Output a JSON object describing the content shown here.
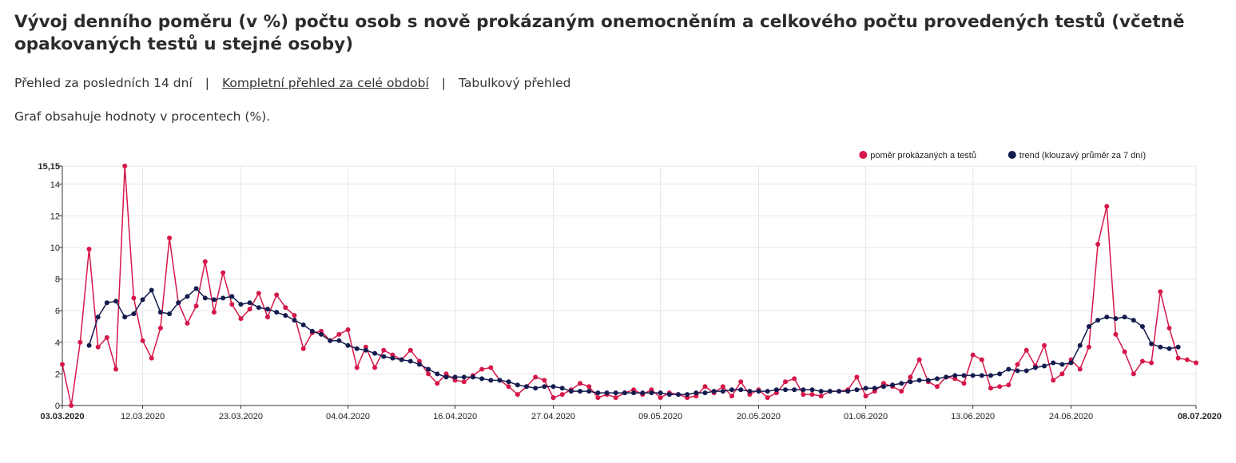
{
  "page": {
    "title": "Vývoj denního poměru (v %) počtu osob s nově prokázaným onemocněním a celkového počtu provedených testů (včetně opakovaných testů u stejné osoby)",
    "nav": [
      {
        "label": "Přehled za posledních 14 dní",
        "link": false
      },
      {
        "label": "Kompletní přehled za celé období",
        "link": true
      },
      {
        "label": "Tabulkový přehled",
        "link": false
      }
    ],
    "note": "Graf obsahuje hodnoty v procentech (%)."
  },
  "chart_data": {
    "type": "line",
    "x_start": "03.03.2020",
    "x_end": "08.07.2020",
    "ylim": [
      0,
      15.15
    ],
    "yticks": [
      "0",
      "2",
      "4",
      "6",
      "8",
      "10",
      "12",
      "14",
      "15,15"
    ],
    "xticks": [
      "03.03.2020",
      "12.03.2020",
      "23.03.2020",
      "04.04.2020",
      "16.04.2020",
      "27.04.2020",
      "09.05.2020",
      "20.05.2020",
      "01.06.2020",
      "13.06.2020",
      "24.06.2020",
      "08.07.2020"
    ],
    "grid": true,
    "legend_position": "top-right",
    "series": [
      {
        "name": "poměr prokázaných a testů",
        "color": "#d6174a",
        "values": [
          2.6,
          0.0,
          4.0,
          9.9,
          3.7,
          4.3,
          2.3,
          15.15,
          6.8,
          4.1,
          3.0,
          4.9,
          10.6,
          6.5,
          5.2,
          6.3,
          9.1,
          5.9,
          8.4,
          6.4,
          5.5,
          6.1,
          7.1,
          5.6,
          7.0,
          6.2,
          5.7,
          3.6,
          4.6,
          4.7,
          4.1,
          4.5,
          4.8,
          2.4,
          3.7,
          2.4,
          3.5,
          3.2,
          2.9,
          3.5,
          2.8,
          2.0,
          1.4,
          2.0,
          1.6,
          1.5,
          1.9,
          2.3,
          2.4,
          1.6,
          1.2,
          0.7,
          1.2,
          1.8,
          1.6,
          0.5,
          0.7,
          1.0,
          1.4,
          1.2,
          0.5,
          0.7,
          0.5,
          0.8,
          1.0,
          0.7,
          1.0,
          0.5,
          0.8,
          0.7,
          0.5,
          0.6,
          1.2,
          0.8,
          1.2,
          0.6,
          1.5,
          0.7,
          1.0,
          0.5,
          0.8,
          1.5,
          1.7,
          0.7,
          0.7,
          0.6,
          0.9,
          0.9,
          1.0,
          1.8,
          0.6,
          0.9,
          1.4,
          1.2,
          0.9,
          1.8,
          2.9,
          1.5,
          1.2,
          1.8,
          1.7,
          1.4,
          3.2,
          2.9,
          1.1,
          1.2,
          1.3,
          2.6,
          3.5,
          2.5,
          3.8,
          1.6,
          2.0,
          2.9,
          2.3,
          3.7,
          10.2,
          12.6,
          4.5,
          3.4,
          2.0,
          2.8,
          2.7,
          7.2,
          4.9,
          3.0,
          2.9,
          2.7
        ]
      },
      {
        "name": "trend (klouzavý průměr za 7 dní)",
        "color": "#141c4f",
        "values": [
          null,
          null,
          null,
          3.8,
          5.6,
          6.5,
          6.6,
          5.6,
          5.8,
          6.7,
          7.3,
          5.9,
          5.8,
          6.5,
          6.9,
          7.4,
          6.8,
          6.7,
          6.8,
          6.9,
          6.4,
          6.5,
          6.2,
          6.1,
          5.9,
          5.7,
          5.4,
          5.1,
          4.7,
          4.5,
          4.1,
          4.1,
          3.8,
          3.6,
          3.5,
          3.3,
          3.1,
          3.0,
          2.9,
          2.8,
          2.6,
          2.3,
          2.0,
          1.8,
          1.8,
          1.8,
          1.8,
          1.7,
          1.6,
          1.6,
          1.5,
          1.3,
          1.2,
          1.1,
          1.2,
          1.2,
          1.1,
          0.9,
          0.9,
          0.9,
          0.8,
          0.8,
          0.8,
          0.8,
          0.8,
          0.8,
          0.8,
          0.8,
          0.7,
          0.7,
          0.7,
          0.8,
          0.8,
          0.9,
          0.9,
          1.0,
          1.0,
          0.9,
          0.9,
          0.9,
          1.0,
          1.0,
          1.0,
          1.0,
          1.0,
          0.9,
          0.9,
          0.9,
          0.9,
          1.0,
          1.1,
          1.1,
          1.2,
          1.3,
          1.4,
          1.5,
          1.6,
          1.6,
          1.7,
          1.8,
          1.9,
          1.9,
          1.9,
          1.9,
          1.9,
          2.0,
          2.3,
          2.2,
          2.2,
          2.4,
          2.5,
          2.7,
          2.6,
          2.7,
          3.8,
          5.0,
          5.4,
          5.6,
          5.5,
          5.6,
          5.4,
          5.0,
          3.9,
          3.7,
          3.6,
          3.7,
          null,
          null,
          null
        ]
      }
    ]
  }
}
